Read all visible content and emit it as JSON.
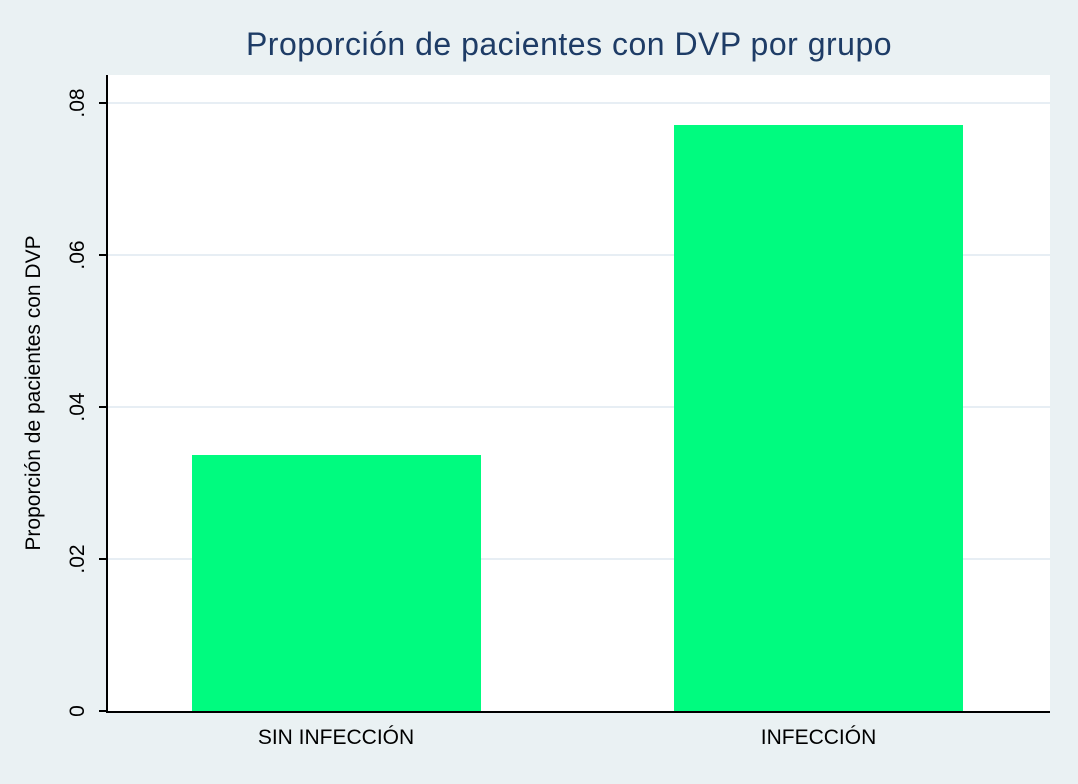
{
  "title": "Proporción de pacientes con DVP por grupo",
  "colors": {
    "background": "#eaf1f3",
    "plot_background": "#ffffff",
    "bar_fill": "#00fb7f",
    "title_text": "#1e3c66",
    "axis_line": "#000000",
    "gridline": "#e7eef4",
    "tick_text": "#000000"
  },
  "chart_data": {
    "type": "bar",
    "title": "Proporción de pacientes con DVP por grupo",
    "categories": [
      "SIN INFECCIÓN",
      "INFECCIÓN"
    ],
    "values": [
      0.0337,
      0.0771
    ],
    "xlabel": "",
    "ylabel": "Proporción de pacientes con DVP",
    "ylim": [
      0,
      0.08
    ],
    "yticks": [
      0,
      0.02,
      0.04,
      0.06,
      0.08
    ],
    "ytick_labels": [
      "0",
      ".02",
      ".04",
      ".06",
      ".08"
    ],
    "grid": true,
    "legend": "none",
    "orientation": "vertical"
  }
}
